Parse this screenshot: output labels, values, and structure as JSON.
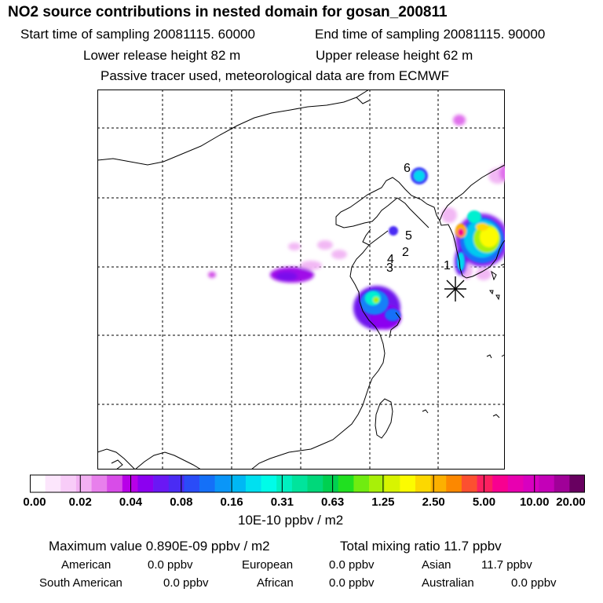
{
  "header": {
    "title": "NO2 source contributions in nested domain for gosan_200811",
    "start_time": "Start time of sampling 20081115. 60000",
    "end_time": "End time of sampling 20081115. 90000",
    "lower_release": "Lower release height   82 m",
    "upper_release": "Upper release height   62 m",
    "tracer_note": "Passive tracer used, meteorological data are from ECMWF"
  },
  "map": {
    "station_labels": [
      "1",
      "2",
      "3",
      "4",
      "5",
      "6"
    ],
    "receptor_symbol": "asterisk-icon"
  },
  "colorbar": {
    "ticks": [
      "0.00",
      "0.02",
      "0.04",
      "0.08",
      "0.16",
      "0.31",
      "0.63",
      "1.25",
      "2.50",
      "5.00",
      "10.00",
      "20.00"
    ],
    "colors": [
      "#ffffff",
      "#fce6fc",
      "#f8ccf8",
      "#f2b0f2",
      "#e880ec",
      "#d84ce8",
      "#b800e8",
      "#8c00f0",
      "#6a18f4",
      "#4a2cf4",
      "#2a4cf8",
      "#1470f8",
      "#0a96f8",
      "#00b8f4",
      "#00e0f0",
      "#00fce8",
      "#00f0c0",
      "#00e49c",
      "#00d87a",
      "#00d050",
      "#20e020",
      "#70ec10",
      "#a8f008",
      "#d8f400",
      "#fcfc00",
      "#fcd800",
      "#fcb000",
      "#fc8800",
      "#fc5030",
      "#fc2060",
      "#f80090",
      "#e800b0",
      "#d800c0",
      "#c400b8",
      "#a00098",
      "#680060"
    ],
    "unit": "10E-10 ppbv / m2"
  },
  "summary": {
    "max_value": "Maximum value  0.890E-09 ppbv / m2",
    "total_mixing": "Total mixing ratio        11.7 ppbv"
  },
  "regions": [
    {
      "name": "American",
      "value": "0.0 ppbv"
    },
    {
      "name": "European",
      "value": "0.0 ppbv"
    },
    {
      "name": "Asian",
      "value": "11.7 ppbv"
    },
    {
      "name": "South American",
      "value": "0.0 ppbv"
    },
    {
      "name": "African",
      "value": "0.0 ppbv"
    },
    {
      "name": "Australian",
      "value": "0.0 ppbv"
    }
  ]
}
